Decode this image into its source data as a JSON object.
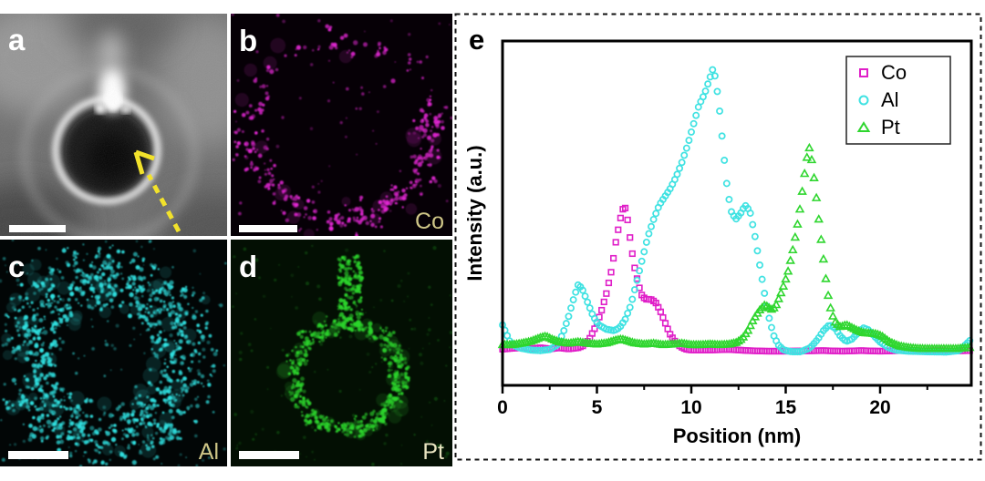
{
  "figure": {
    "panel_e": {
      "letter": "e"
    },
    "panels": [
      {
        "id": "a",
        "letter": "a",
        "kind": "HAADF-STEM image",
        "has_scale_bar": true,
        "arrow_color": "#f2e22b"
      },
      {
        "id": "b",
        "letter": "b",
        "element": "Co",
        "color": "#e326d4",
        "label_color": "#cfc687",
        "has_scale_bar": true
      },
      {
        "id": "c",
        "letter": "c",
        "element": "Al",
        "color": "#2fe0e0",
        "label_color": "#cfc687",
        "has_scale_bar": true
      },
      {
        "id": "d",
        "letter": "d",
        "element": "Pt",
        "color": "#2bd52b",
        "label_color": "#e8e3c0",
        "has_scale_bar": true
      }
    ]
  },
  "chart_data": {
    "type": "scatter",
    "title": "",
    "xlabel": "Position (nm)",
    "ylabel": "Intensity (a.u.)",
    "xlim": [
      0,
      24.8
    ],
    "ylim": [
      0,
      1.1
    ],
    "y_units": "arbitrary units (no y tick labels shown)",
    "grid": false,
    "legend_position": "top-right",
    "x_major_ticks": [
      0,
      5,
      10,
      15,
      20
    ],
    "x_minor_ticks": [
      2.5,
      7.5,
      12.5,
      17.5,
      22.5
    ],
    "marker_step_nm": 0.125,
    "series": [
      {
        "name": "Co",
        "marker": "square",
        "color": "#e01fc8",
        "points": [
          [
            0,
            0.015
          ],
          [
            0.5,
            0.018
          ],
          [
            1,
            0.02
          ],
          [
            1.5,
            0.016
          ],
          [
            2,
            0.02
          ],
          [
            2.5,
            0.016
          ],
          [
            3,
            0.02
          ],
          [
            3.5,
            0.016
          ],
          [
            4,
            0.02
          ],
          [
            4.3,
            0.028
          ],
          [
            4.6,
            0.05
          ],
          [
            4.9,
            0.09
          ],
          [
            5.2,
            0.14
          ],
          [
            5.5,
            0.21
          ],
          [
            5.8,
            0.3
          ],
          [
            6,
            0.39
          ],
          [
            6.2,
            0.46
          ],
          [
            6.35,
            0.505
          ],
          [
            6.5,
            0.51
          ],
          [
            6.65,
            0.46
          ],
          [
            6.8,
            0.38
          ],
          [
            7,
            0.3
          ],
          [
            7.2,
            0.24
          ],
          [
            7.4,
            0.2
          ],
          [
            7.6,
            0.19
          ],
          [
            7.85,
            0.19
          ],
          [
            8.1,
            0.18
          ],
          [
            8.35,
            0.15
          ],
          [
            8.6,
            0.11
          ],
          [
            8.85,
            0.07
          ],
          [
            9.1,
            0.045
          ],
          [
            9.4,
            0.025
          ],
          [
            9.7,
            0.015
          ],
          [
            10,
            0.012
          ],
          [
            11,
            0.012
          ],
          [
            12,
            0.014
          ],
          [
            13,
            0.01
          ],
          [
            14,
            0.008
          ],
          [
            15,
            0.008
          ],
          [
            16,
            0.009
          ],
          [
            17,
            0.01
          ],
          [
            18,
            0.008
          ],
          [
            19,
            0.01
          ],
          [
            20,
            0.008
          ],
          [
            21,
            0.01
          ],
          [
            22,
            0.009
          ],
          [
            23,
            0.01
          ],
          [
            24,
            0.009
          ],
          [
            24.75,
            0.01
          ]
        ]
      },
      {
        "name": "Al",
        "marker": "circle",
        "color": "#3fe2e2",
        "points": [
          [
            0,
            0.1
          ],
          [
            0.2,
            0.07
          ],
          [
            0.4,
            0.04
          ],
          [
            0.7,
            0.025
          ],
          [
            1,
            0.018
          ],
          [
            1.5,
            0.012
          ],
          [
            2,
            0.01
          ],
          [
            2.5,
            0.014
          ],
          [
            2.9,
            0.03
          ],
          [
            3.2,
            0.07
          ],
          [
            3.5,
            0.13
          ],
          [
            3.8,
            0.2
          ],
          [
            4,
            0.24
          ],
          [
            4.2,
            0.23
          ],
          [
            4.5,
            0.18
          ],
          [
            4.8,
            0.13
          ],
          [
            5.1,
            0.1
          ],
          [
            5.5,
            0.085
          ],
          [
            5.9,
            0.08
          ],
          [
            6.2,
            0.09
          ],
          [
            6.5,
            0.12
          ],
          [
            6.8,
            0.17
          ],
          [
            7.1,
            0.25
          ],
          [
            7.4,
            0.33
          ],
          [
            7.7,
            0.41
          ],
          [
            8,
            0.47
          ],
          [
            8.3,
            0.52
          ],
          [
            8.6,
            0.55
          ],
          [
            8.9,
            0.58
          ],
          [
            9.2,
            0.62
          ],
          [
            9.5,
            0.67
          ],
          [
            9.8,
            0.73
          ],
          [
            10.1,
            0.8
          ],
          [
            10.4,
            0.87
          ],
          [
            10.7,
            0.91
          ],
          [
            11,
            0.97
          ],
          [
            11.15,
            1
          ],
          [
            11.3,
            0.96
          ],
          [
            11.5,
            0.85
          ],
          [
            11.7,
            0.71
          ],
          [
            11.9,
            0.58
          ],
          [
            12.1,
            0.5
          ],
          [
            12.35,
            0.47
          ],
          [
            12.6,
            0.49
          ],
          [
            12.85,
            0.52
          ],
          [
            13.1,
            0.5
          ],
          [
            13.35,
            0.42
          ],
          [
            13.6,
            0.32
          ],
          [
            13.85,
            0.22
          ],
          [
            14.1,
            0.13
          ],
          [
            14.35,
            0.065
          ],
          [
            14.6,
            0.03
          ],
          [
            14.9,
            0.012
          ],
          [
            15.3,
            0.006
          ],
          [
            15.8,
            0.006
          ],
          [
            16.3,
            0.02
          ],
          [
            16.7,
            0.05
          ],
          [
            17,
            0.08
          ],
          [
            17.3,
            0.1
          ],
          [
            17.6,
            0.09
          ],
          [
            17.9,
            0.06
          ],
          [
            18.2,
            0.042
          ],
          [
            18.5,
            0.05
          ],
          [
            18.8,
            0.07
          ],
          [
            19.1,
            0.09
          ],
          [
            19.4,
            0.082
          ],
          [
            19.7,
            0.06
          ],
          [
            20,
            0.04
          ],
          [
            20.4,
            0.022
          ],
          [
            20.8,
            0.012
          ],
          [
            21.5,
            0.008
          ],
          [
            22.5,
            0.006
          ],
          [
            23.5,
            0.005
          ],
          [
            24.2,
            0.01
          ],
          [
            24.75,
            0.045
          ]
        ]
      },
      {
        "name": "Pt",
        "marker": "triangle",
        "color": "#2fd62f",
        "points": [
          [
            0,
            0.03
          ],
          [
            0.5,
            0.03
          ],
          [
            1,
            0.035
          ],
          [
            1.5,
            0.042
          ],
          [
            2,
            0.055
          ],
          [
            2.3,
            0.06
          ],
          [
            2.6,
            0.05
          ],
          [
            3,
            0.04
          ],
          [
            3.5,
            0.035
          ],
          [
            4,
            0.04
          ],
          [
            4.5,
            0.035
          ],
          [
            5,
            0.032
          ],
          [
            5.5,
            0.036
          ],
          [
            6,
            0.046
          ],
          [
            6.3,
            0.05
          ],
          [
            6.6,
            0.044
          ],
          [
            7,
            0.036
          ],
          [
            7.5,
            0.032
          ],
          [
            8,
            0.035
          ],
          [
            8.5,
            0.03
          ],
          [
            9,
            0.032
          ],
          [
            9.5,
            0.035
          ],
          [
            10,
            0.03
          ],
          [
            10.5,
            0.03
          ],
          [
            11,
            0.032
          ],
          [
            11.5,
            0.03
          ],
          [
            12,
            0.032
          ],
          [
            12.4,
            0.038
          ],
          [
            12.7,
            0.052
          ],
          [
            13,
            0.08
          ],
          [
            13.3,
            0.12
          ],
          [
            13.6,
            0.15
          ],
          [
            13.9,
            0.17
          ],
          [
            14.1,
            0.16
          ],
          [
            14.3,
            0.152
          ],
          [
            14.5,
            0.17
          ],
          [
            14.8,
            0.22
          ],
          [
            15.1,
            0.28
          ],
          [
            15.4,
            0.37
          ],
          [
            15.7,
            0.48
          ],
          [
            15.9,
            0.58
          ],
          [
            16.1,
            0.68
          ],
          [
            16.25,
            0.72
          ],
          [
            16.4,
            0.67
          ],
          [
            16.6,
            0.56
          ],
          [
            16.8,
            0.44
          ],
          [
            17,
            0.33
          ],
          [
            17.2,
            0.22
          ],
          [
            17.4,
            0.15
          ],
          [
            17.6,
            0.11
          ],
          [
            17.9,
            0.092
          ],
          [
            18.2,
            0.1
          ],
          [
            18.5,
            0.09
          ],
          [
            18.8,
            0.08
          ],
          [
            19.1,
            0.072
          ],
          [
            19.5,
            0.07
          ],
          [
            19.8,
            0.068
          ],
          [
            20.1,
            0.06
          ],
          [
            20.5,
            0.04
          ],
          [
            21,
            0.026
          ],
          [
            21.5,
            0.02
          ],
          [
            22,
            0.017
          ],
          [
            22.5,
            0.016
          ],
          [
            23,
            0.016
          ],
          [
            23.5,
            0.016
          ],
          [
            24,
            0.016
          ],
          [
            24.75,
            0.02
          ]
        ]
      }
    ]
  }
}
